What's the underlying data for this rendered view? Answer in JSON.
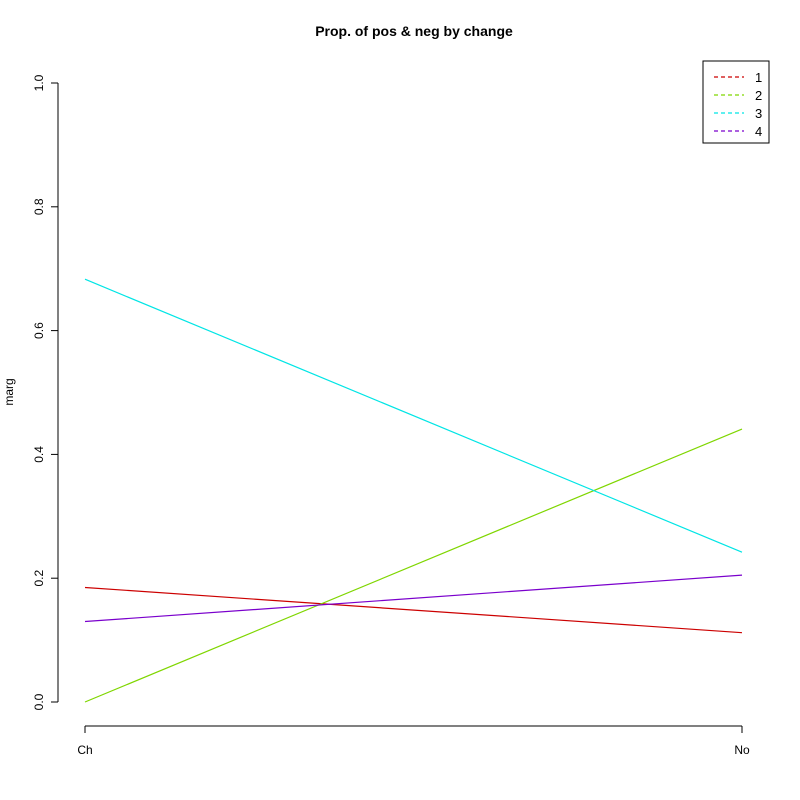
{
  "chart_data": {
    "type": "line",
    "title": "Prop. of pos & neg by change",
    "xlabel": "",
    "ylabel": "marg",
    "categories": [
      "Ch",
      "No"
    ],
    "ylim": [
      0,
      1
    ],
    "yticks": [
      "0.0",
      "0.2",
      "0.4",
      "0.6",
      "0.8",
      "1.0"
    ],
    "grid": false,
    "legend_position": "top-right",
    "series": [
      {
        "name": "1",
        "values": [
          0.185,
          0.112
        ],
        "color": "#cc0000"
      },
      {
        "name": "2",
        "values": [
          0.0,
          0.441
        ],
        "color": "#7fd600"
      },
      {
        "name": "3",
        "values": [
          0.683,
          0.242
        ],
        "color": "#00e5e5"
      },
      {
        "name": "4",
        "values": [
          0.13,
          0.205
        ],
        "color": "#7a00cc"
      }
    ]
  }
}
